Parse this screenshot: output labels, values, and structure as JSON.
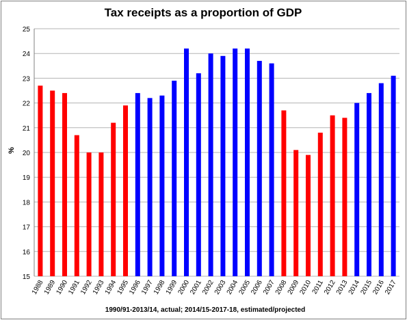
{
  "chart_data": {
    "type": "bar",
    "title": "Tax receipts as a proportion of GDP",
    "xlabel": "1990/91-2013/14, actual; 2014/15-2017-18, estimated/projected",
    "ylabel": "%",
    "ylim": [
      15,
      25
    ],
    "yticks": [
      "15",
      "16",
      "17",
      "18",
      "19",
      "20",
      "21",
      "22",
      "23",
      "24",
      "25"
    ],
    "grid": true,
    "legend": "none",
    "categories": [
      "1988",
      "1989",
      "1990",
      "1991",
      "1992",
      "1993",
      "1994",
      "1995",
      "1996",
      "1997",
      "1998",
      "1999",
      "2000",
      "2001",
      "2002",
      "2003",
      "2004",
      "2005",
      "2006",
      "2007",
      "2008",
      "2009",
      "2010",
      "2011",
      "2012",
      "2013",
      "2014",
      "2015",
      "2016",
      "2017"
    ],
    "values": [
      22.7,
      22.5,
      22.4,
      20.7,
      20.0,
      20.0,
      21.2,
      21.9,
      22.4,
      22.2,
      22.3,
      22.9,
      24.2,
      23.2,
      24.0,
      23.9,
      24.2,
      24.2,
      23.7,
      23.6,
      21.7,
      20.1,
      19.9,
      20.8,
      21.5,
      21.4,
      22.0,
      22.4,
      22.8,
      23.1
    ],
    "bar_colors": [
      "#ff0000",
      "#ff0000",
      "#ff0000",
      "#ff0000",
      "#ff0000",
      "#ff0000",
      "#ff0000",
      "#ff0000",
      "#0000ff",
      "#0000ff",
      "#0000ff",
      "#0000ff",
      "#0000ff",
      "#0000ff",
      "#0000ff",
      "#0000ff",
      "#0000ff",
      "#0000ff",
      "#0000ff",
      "#0000ff",
      "#ff0000",
      "#ff0000",
      "#ff0000",
      "#ff0000",
      "#ff0000",
      "#ff0000",
      "#0000ff",
      "#0000ff",
      "#0000ff",
      "#0000ff"
    ]
  }
}
